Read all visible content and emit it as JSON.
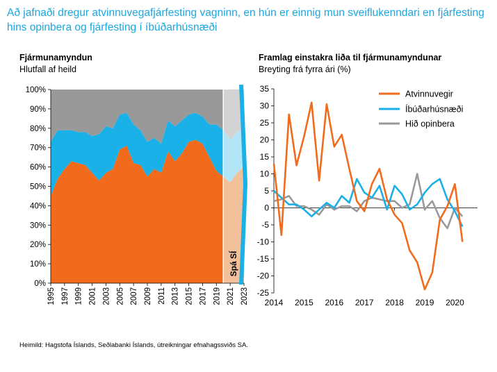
{
  "headline": "Að jafnaði dregur atvinnuvegafjárfesting vagninn, en hún er einnig mun sveiflukenndari en fjárfesting hins opinbera og fjárfesting í íbúðarhúsnæði",
  "source": "Heimild: Hagstofa Íslands, Seðlabanki Íslands, útreikningar efnahagssviðs SA.",
  "colors": {
    "orange": "#f26b1d",
    "blue": "#1ab0e8",
    "gray": "#999999",
    "forecast_orange": "#f2c09b",
    "forecast_blue": "#b3e5f8",
    "forecast_gray": "#d3d3d3",
    "arrow": "#1ab0e8",
    "headline": "#1ba7df"
  },
  "chart_data": [
    {
      "type": "area",
      "title": "Fjármunamyndun",
      "subtitle": "Hlutfall af heild",
      "ylim": [
        0,
        100
      ],
      "yticks": [
        "0%",
        "10%",
        "20%",
        "30%",
        "40%",
        "50%",
        "60%",
        "70%",
        "80%",
        "90%",
        "100%"
      ],
      "x_tick_labels": [
        "1995",
        "1997",
        "1999",
        "2001",
        "2003",
        "2005",
        "2007",
        "2009",
        "2011",
        "2013",
        "2015",
        "2017",
        "2019",
        "2021",
        "2023"
      ],
      "x": [
        1995,
        1996,
        1997,
        1998,
        1999,
        2000,
        2001,
        2002,
        2003,
        2004,
        2005,
        2006,
        2007,
        2008,
        2009,
        2010,
        2011,
        2012,
        2013,
        2014,
        2015,
        2016,
        2017,
        2018,
        2019,
        2020,
        2021,
        2022,
        2023
      ],
      "stacking": "100% stacked",
      "series": [
        {
          "values": [
            45,
            54,
            59,
            63,
            62,
            61,
            57,
            53,
            57,
            59,
            69,
            71,
            62,
            61,
            55,
            59,
            57,
            68,
            63,
            67,
            73,
            74,
            72,
            65,
            58,
            55,
            52,
            57,
            60
          ]
        },
        {
          "values": [
            28,
            25,
            20,
            16,
            16,
            17,
            19,
            24,
            24,
            21,
            18,
            17,
            20,
            18,
            18,
            16,
            15,
            16,
            18,
            17,
            14,
            14,
            14,
            17,
            24,
            24,
            22,
            21,
            20
          ]
        },
        {
          "values": [
            27,
            21,
            21,
            21,
            22,
            22,
            24,
            23,
            19,
            20,
            13,
            12,
            18,
            21,
            27,
            25,
            28,
            16,
            19,
            16,
            13,
            12,
            14,
            18,
            18,
            21,
            26,
            22,
            20
          ]
        }
      ],
      "forecast": {
        "label": "Spá SÍ",
        "from": 2020
      }
    },
    {
      "type": "line",
      "title": "Framlag einstakra liða til fjármunamyndunar",
      "subtitle": "Breyting frá fyrra ári (%)",
      "ylim": [
        -25,
        35
      ],
      "yticks": [
        "35",
        "30",
        "25",
        "20",
        "15",
        "10",
        "5",
        "0",
        "-5",
        "-10",
        "-15",
        "-20",
        "-25"
      ],
      "x_tick_labels": [
        "2014",
        "2015",
        "2016",
        "2017",
        "2018",
        "2019",
        "2020"
      ],
      "xlim": [
        2014,
        2020.75
      ],
      "legend_position": "top-right",
      "x": [
        2014,
        2014.25,
        2014.5,
        2014.75,
        2015,
        2015.25,
        2015.5,
        2015.75,
        2016,
        2016.25,
        2016.5,
        2016.75,
        2017,
        2017.25,
        2017.5,
        2017.75,
        2018,
        2018.25,
        2018.5,
        2018.75,
        2019,
        2019.25,
        2019.5,
        2019.75,
        2020,
        2020.25,
        2020.5
      ],
      "series": [
        {
          "name": "Atvinnuvegir",
          "values": [
            13,
            -8,
            27.5,
            12.5,
            21,
            31,
            8,
            30.5,
            18,
            21.5,
            11.5,
            2,
            -1,
            7,
            11.5,
            2.5,
            -2,
            -4.5,
            -12.5,
            -16,
            -24,
            -19,
            -3.5,
            0.5,
            7,
            -10,
            null
          ]
        },
        {
          "name": "Íbúðarhúsnæði",
          "values": [
            5,
            3,
            1,
            1,
            -0.5,
            -2.5,
            -0.5,
            1.5,
            0,
            3.5,
            1.5,
            8.5,
            4.5,
            3,
            6.5,
            -0.5,
            6.5,
            4,
            -0.5,
            1,
            4.5,
            7,
            8.5,
            2.5,
            -1,
            -5.5,
            null
          ]
        },
        {
          "name": "Hið opinbera",
          "values": [
            2,
            2.5,
            3.5,
            0.5,
            0.5,
            -0.5,
            -2,
            1,
            -0.5,
            0.5,
            0.5,
            -1,
            2,
            3,
            2.5,
            2,
            2,
            0,
            1,
            10,
            -0.5,
            2,
            -3,
            -6,
            0,
            -2.5,
            null
          ]
        }
      ]
    }
  ]
}
